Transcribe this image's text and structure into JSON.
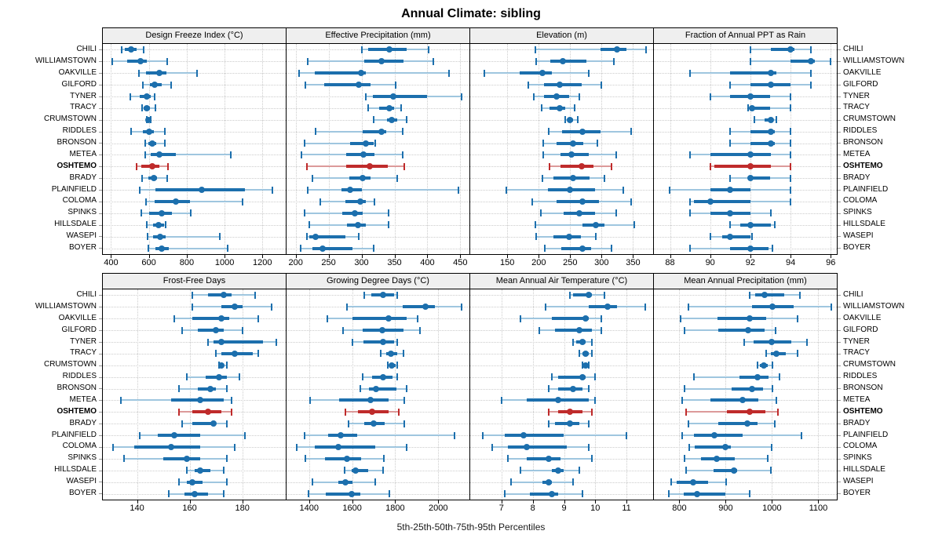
{
  "title": "Annual Climate: sibling",
  "caption": "5th-25th-50th-75th-95th Percentiles",
  "highlight_site": "OSHTEMO",
  "colors": {
    "series_main": "#1c6fad",
    "series_light": "#9fc6df",
    "highlight_main": "#bf2b2b",
    "highlight_light": "#dc9a9a",
    "grid": "#cccccc",
    "strip_bg": "#efefef",
    "border": "#000000"
  },
  "sites": [
    "CHILI",
    "WILLIAMSTOWN",
    "OAKVILLE",
    "GILFORD",
    "TYNER",
    "TRACY",
    "CRUMSTOWN",
    "RIDDLES",
    "BRONSON",
    "METEA",
    "OSHTEMO",
    "BRADY",
    "PLAINFIELD",
    "COLOMA",
    "SPINKS",
    "HILLSDALE",
    "WASEPI",
    "BOYER"
  ],
  "chart_data": {
    "type": "dotplot-percentiles",
    "percentile_labels": [
      "5th",
      "25th",
      "50th",
      "75th",
      "95th"
    ],
    "grid": "dotted",
    "legend_position": "none",
    "panels": [
      {
        "grid_row": 0,
        "title": "Design Freeze Index (°C)",
        "ticks": [
          400,
          600,
          800,
          1000,
          1200
        ],
        "xlim": [
          357,
          1323
        ],
        "values": [
          [
            457,
            473,
            505,
            535,
            574
          ],
          [
            408,
            487,
            556,
            590,
            698
          ],
          [
            546,
            583,
            657,
            694,
            855
          ],
          [
            570,
            604,
            632,
            666,
            717
          ],
          [
            503,
            552,
            590,
            611,
            632
          ],
          [
            565,
            574,
            588,
            604,
            634
          ],
          [
            588,
            592,
            597,
            603,
            608
          ],
          [
            508,
            570,
            601,
            625,
            684
          ],
          [
            579,
            597,
            618,
            639,
            684
          ],
          [
            579,
            611,
            657,
            742,
            1032
          ],
          [
            535,
            560,
            618,
            657,
            703
          ],
          [
            565,
            597,
            625,
            643,
            698
          ],
          [
            552,
            636,
            880,
            1109,
            1253
          ],
          [
            583,
            629,
            743,
            816,
            1093
          ],
          [
            560,
            603,
            667,
            720,
            820
          ],
          [
            589,
            623,
            653,
            680,
            689
          ],
          [
            592,
            623,
            659,
            689,
            973
          ],
          [
            596,
            636,
            669,
            707,
            1018
          ]
        ]
      },
      {
        "grid_row": 0,
        "title": "Effective Precipitation (mm)",
        "ticks": [
          200,
          250,
          300,
          350,
          400,
          450
        ],
        "xlim": [
          186,
          464
        ],
        "values": [
          [
            300,
            310,
            342,
            368,
            402
          ],
          [
            218,
            304,
            330,
            364,
            409
          ],
          [
            205,
            229,
            299,
            307,
            433
          ],
          [
            215,
            243,
            296,
            314,
            352
          ],
          [
            306,
            317,
            348,
            400,
            452
          ],
          [
            310,
            327,
            342,
            350,
            360
          ],
          [
            318,
            339,
            346,
            354,
            369
          ],
          [
            230,
            302,
            330,
            338,
            363
          ],
          [
            213,
            283,
            306,
            318,
            321
          ],
          [
            209,
            277,
            303,
            320,
            363
          ],
          [
            217,
            277,
            312,
            340,
            365
          ],
          [
            225,
            281,
            302,
            314,
            354
          ],
          [
            218,
            270,
            283,
            300,
            447
          ],
          [
            237,
            275,
            298,
            306,
            320
          ],
          [
            213,
            271,
            290,
            302,
            341
          ],
          [
            221,
            278,
            294,
            306,
            341
          ],
          [
            217,
            221,
            230,
            275,
            296
          ],
          [
            208,
            225,
            241,
            286,
            318
          ]
        ]
      },
      {
        "grid_row": 0,
        "title": "Elevation (m)",
        "ticks": [
          150,
          200,
          250,
          300,
          350
        ],
        "xlim": [
          91,
          382
        ],
        "values": [
          [
            195,
            298,
            324,
            339,
            371
          ],
          [
            196,
            219,
            238,
            276,
            319
          ],
          [
            113,
            170,
            206,
            221,
            280
          ],
          [
            184,
            208,
            233,
            268,
            300
          ],
          [
            192,
            209,
            229,
            249,
            265
          ],
          [
            205,
            217,
            233,
            242,
            257
          ],
          [
            242,
            246,
            250,
            255,
            262
          ],
          [
            216,
            237,
            269,
            298,
            347
          ],
          [
            207,
            228,
            255,
            271,
            293
          ],
          [
            207,
            235,
            252,
            279,
            323
          ],
          [
            217,
            235,
            268,
            287,
            316
          ],
          [
            206,
            224,
            254,
            281,
            304
          ],
          [
            149,
            215,
            250,
            290,
            335
          ],
          [
            190,
            228,
            269,
            296,
            347
          ],
          [
            203,
            240,
            265,
            290,
            323
          ],
          [
            195,
            269,
            291,
            304,
            352
          ],
          [
            196,
            224,
            248,
            267,
            291
          ],
          [
            210,
            236,
            269,
            283,
            316
          ]
        ]
      },
      {
        "grid_row": 0,
        "title": "Fraction of Annual PPT as Rain",
        "ticks": [
          88,
          90,
          92,
          94,
          96
        ],
        "xlim": [
          87.2,
          96.3
        ],
        "values": [
          [
            92,
            93,
            94,
            94.2,
            95
          ],
          [
            92,
            94,
            95,
            95.2,
            96
          ],
          [
            89,
            91,
            93,
            93.3,
            95
          ],
          [
            91,
            92,
            93,
            94,
            95
          ],
          [
            90,
            91,
            92,
            93,
            94
          ],
          [
            91.9,
            92,
            92.1,
            93,
            94
          ],
          [
            92.2,
            92.7,
            93,
            93.1,
            93.3
          ],
          [
            91,
            92,
            93,
            93.2,
            94
          ],
          [
            91,
            92,
            93,
            93.2,
            94
          ],
          [
            89,
            90,
            92,
            93,
            94
          ],
          [
            90,
            90.2,
            92,
            93,
            94
          ],
          [
            91,
            91.9,
            92,
            93,
            94
          ],
          [
            88,
            90,
            91,
            92,
            94
          ],
          [
            89,
            89.2,
            90,
            92,
            94
          ],
          [
            89,
            90,
            91,
            92,
            93
          ],
          [
            91,
            91.5,
            92,
            93,
            93.2
          ],
          [
            90,
            90.6,
            91,
            92,
            92.1
          ],
          [
            89,
            91,
            92,
            92.9,
            93.1
          ]
        ]
      },
      {
        "grid_row": 1,
        "title": "Frost-Free Days",
        "ticks": [
          140,
          160,
          180
        ],
        "xlim": [
          127,
          196.5
        ],
        "values": [
          [
            161,
            167,
            173,
            176,
            185
          ],
          [
            161,
            172,
            177,
            180,
            191
          ],
          [
            154,
            161,
            172,
            175,
            186
          ],
          [
            157,
            163,
            170,
            173,
            180
          ],
          [
            167,
            169,
            172,
            188,
            193
          ],
          [
            170,
            172,
            177,
            184,
            186
          ],
          [
            171,
            171.4,
            172,
            173,
            174
          ],
          [
            159,
            166,
            171,
            174,
            179
          ],
          [
            156,
            163,
            168,
            170,
            174
          ],
          [
            134,
            153,
            164,
            173,
            176
          ],
          [
            156,
            161,
            167,
            172,
            176
          ],
          [
            157,
            161,
            169,
            170,
            174
          ],
          [
            141,
            148,
            154,
            164,
            181
          ],
          [
            131,
            139,
            153,
            164,
            177
          ],
          [
            135,
            150,
            159,
            164,
            174
          ],
          [
            159,
            162,
            164,
            168,
            173
          ],
          [
            156,
            159,
            161,
            165,
            174
          ],
          [
            152,
            158,
            162,
            167,
            173
          ]
        ]
      },
      {
        "grid_row": 1,
        "title": "Growing Degree Days (°C)",
        "ticks": [
          1400,
          1600,
          1800,
          2000
        ],
        "xlim": [
          1295,
          2145
        ],
        "values": [
          [
            1655,
            1690,
            1745,
            1795,
            1810
          ],
          [
            1575,
            1835,
            1940,
            1985,
            2110
          ],
          [
            1485,
            1600,
            1770,
            1855,
            1905
          ],
          [
            1558,
            1650,
            1740,
            1837,
            1914
          ],
          [
            1603,
            1651,
            1744,
            1795,
            1808
          ],
          [
            1732,
            1758,
            1780,
            1810,
            1838
          ],
          [
            1765,
            1773,
            1785,
            1801,
            1810
          ],
          [
            1650,
            1692,
            1744,
            1789,
            1808
          ],
          [
            1637,
            1679,
            1712,
            1805,
            1853
          ],
          [
            1406,
            1540,
            1686,
            1771,
            1841
          ],
          [
            1570,
            1627,
            1692,
            1768,
            1817
          ],
          [
            1582,
            1655,
            1700,
            1752,
            1841
          ],
          [
            1379,
            1489,
            1546,
            1622,
            2077
          ],
          [
            1343,
            1428,
            1537,
            1707,
            1853
          ],
          [
            1384,
            1473,
            1576,
            1643,
            1748
          ],
          [
            1566,
            1598,
            1615,
            1676,
            1744
          ],
          [
            1416,
            1534,
            1570,
            1603,
            1707
          ],
          [
            1396,
            1479,
            1598,
            1637,
            1773
          ]
        ]
      },
      {
        "grid_row": 1,
        "title": "Mean Annual Air Temperature (°C)",
        "ticks": [
          7,
          8,
          9,
          10,
          11
        ],
        "xlim": [
          6.0,
          11.85
        ],
        "values": [
          [
            9.2,
            9.3,
            9.8,
            9.9,
            10.3
          ],
          [
            8.4,
            9.8,
            10.4,
            10.7,
            11.6
          ],
          [
            7.6,
            8.6,
            9.7,
            9.8,
            10.2
          ],
          [
            8.2,
            8.7,
            9.5,
            9.9,
            10.2
          ],
          [
            9.3,
            9.4,
            9.6,
            9.7,
            9.9
          ],
          [
            9.5,
            9.6,
            9.7,
            9.8,
            9.9
          ],
          [
            9.6,
            9.65,
            9.7,
            9.75,
            9.8
          ],
          [
            8.6,
            8.8,
            9.6,
            9.7,
            10.0
          ],
          [
            8.5,
            8.8,
            9.3,
            9.6,
            9.8
          ],
          [
            7.0,
            7.8,
            8.8,
            9.8,
            10.0
          ],
          [
            8.5,
            8.8,
            9.2,
            9.6,
            9.9
          ],
          [
            8.5,
            8.7,
            9.2,
            9.5,
            9.8
          ],
          [
            6.4,
            7.1,
            7.7,
            9.0,
            11.0
          ],
          [
            6.7,
            7.2,
            7.8,
            9.1,
            9.8
          ],
          [
            7.2,
            7.8,
            8.5,
            8.9,
            9.9
          ],
          [
            7.6,
            8.6,
            8.8,
            9.0,
            9.5
          ],
          [
            7.3,
            8.3,
            8.5,
            8.6,
            9.3
          ],
          [
            7.1,
            7.9,
            8.6,
            8.8,
            9.6
          ]
        ]
      },
      {
        "grid_row": 1,
        "title": "Mean Annual Precipitation (mm)",
        "ticks": [
          800,
          900,
          1000,
          1100
        ],
        "xlim": [
          745,
          1140
        ],
        "values": [
          [
            952,
            963,
            984,
            1027,
            1061
          ],
          [
            819,
            957,
            1001,
            1047,
            1128
          ],
          [
            802,
            883,
            952,
            988,
            1055
          ],
          [
            811,
            884,
            948,
            984,
            1008
          ],
          [
            940,
            960,
            999,
            1042,
            1075
          ],
          [
            988,
            997,
            1010,
            1030,
            1055
          ],
          [
            969,
            974,
            982,
            991,
            1001
          ],
          [
            832,
            929,
            969,
            993,
            1016
          ],
          [
            811,
            912,
            957,
            980,
            1001
          ],
          [
            806,
            867,
            937,
            971,
            1010
          ],
          [
            815,
            903,
            952,
            985,
            1013
          ],
          [
            819,
            884,
            946,
            969,
            1006
          ],
          [
            806,
            832,
            875,
            937,
            1064
          ],
          [
            822,
            834,
            899,
            912,
            999
          ],
          [
            811,
            847,
            881,
            920,
            991
          ],
          [
            815,
            873,
            918,
            924,
            997
          ],
          [
            783,
            794,
            830,
            862,
            901
          ],
          [
            778,
            810,
            839,
            899,
            952
          ]
        ]
      }
    ]
  }
}
